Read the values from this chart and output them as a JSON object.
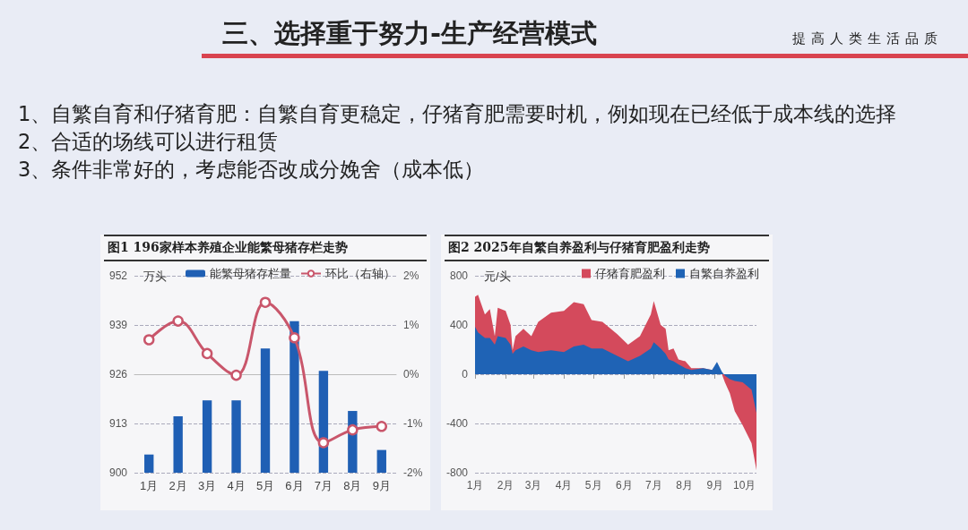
{
  "chart_data": [
    {
      "type": "other",
      "title": "三、选择重于努力-生产经营模式",
      "subtitle": "提高人类生活品质",
      "annotations": [
        "1、自繁自育和仔猪育肥：自繁自育更稳定，仔猪育肥需要时机，例如现在已经低于成本线的选择",
        "2、合适的场线可以进行租赁",
        "3、条件非常好的，考虑能否改成分娩舍（成本低）"
      ]
    },
    {
      "type": "bar",
      "title": "图1 196家样本养殖企业能繁母猪存栏走势",
      "ylabel": "万头",
      "categories": [
        "1月",
        "2月",
        "3月",
        "4月",
        "5月",
        "6月",
        "7月",
        "8月",
        "9月"
      ],
      "series": [
        {
          "name": "能繁母猪存栏量",
          "color": "#1f5fb4",
          "values": [
            904.8,
            914.9,
            919.1,
            919.1,
            932.8,
            940.0,
            926.9,
            916.3,
            906.0
          ]
        },
        {
          "name": "环比（右轴）",
          "type": "line",
          "axis": "y2",
          "color": "#c9566b",
          "values": [
            0.7,
            1.08,
            0.42,
            -0.02,
            1.46,
            0.74,
            -1.39,
            -1.13,
            -1.06
          ]
        }
      ],
      "ylim": [
        900,
        952
      ],
      "yticks": [
        900,
        913,
        926,
        939,
        952
      ],
      "y2lim": [
        -2,
        2
      ],
      "y2ticks": [
        {
          "value": -2,
          "label": "-2%"
        },
        {
          "value": -1,
          "label": "-1%"
        },
        {
          "value": 0,
          "label": "0%"
        },
        {
          "value": 1,
          "label": "1%"
        },
        {
          "value": 2,
          "label": "2%"
        }
      ],
      "grid": "y",
      "legend": "top",
      "marker": "circle"
    },
    {
      "type": "area",
      "title": "图2 2025年自繁自养盈利与仔猪育肥盈利走势",
      "ylabel": "元/头",
      "x": [
        "2025-01-01",
        "2025-01-04",
        "2025-01-11",
        "2025-01-16",
        "2025-01-21",
        "2025-01-24",
        "2025-02-01",
        "2025-02-06",
        "2025-02-08",
        "2025-02-11",
        "2025-02-19",
        "2025-02-27",
        "2025-03-06",
        "2025-03-19",
        "2025-04-01",
        "2025-04-11",
        "2025-04-21",
        "2025-04-29",
        "2025-05-10",
        "2025-05-25",
        "2025-06-05",
        "2025-06-17",
        "2025-06-28",
        "2025-07-01",
        "2025-07-08",
        "2025-07-13",
        "2025-07-16",
        "2025-07-21",
        "2025-07-26",
        "2025-08-02",
        "2025-08-08",
        "2025-08-20",
        "2025-08-29",
        "2025-09-03",
        "2025-09-08",
        "2025-09-11",
        "2025-09-16",
        "2025-09-21",
        "2025-09-29",
        "2025-10-08",
        "2025-10-13"
      ],
      "series": [
        {
          "name": "仔猪育肥盈利",
          "color": "#d44a5c",
          "values": [
            630,
            645,
            485,
            530,
            310,
            540,
            515,
            400,
            195,
            310,
            370,
            310,
            425,
            500,
            515,
            585,
            570,
            440,
            425,
            325,
            240,
            310,
            485,
            595,
            400,
            370,
            195,
            210,
            120,
            105,
            50,
            50,
            35,
            80,
            0,
            -65,
            -155,
            -300,
            -415,
            -560,
            -780
          ]
        },
        {
          "name": "自繁自养盈利",
          "color": "#1f63b5",
          "values": [
            385,
            340,
            295,
            295,
            240,
            310,
            295,
            240,
            165,
            195,
            225,
            195,
            180,
            195,
            180,
            225,
            240,
            210,
            210,
            150,
            105,
            150,
            210,
            260,
            210,
            165,
            120,
            105,
            80,
            50,
            35,
            50,
            35,
            100,
            20,
            -10,
            -40,
            -55,
            -65,
            -125,
            -315
          ]
        }
      ],
      "xlim": [
        "2025-01-01",
        "2025-10-13"
      ],
      "xticks": [
        {
          "value": "2025-01-01",
          "label": "1月"
        },
        {
          "value": "2025-02-01",
          "label": "2月"
        },
        {
          "value": "2025-03-01",
          "label": "3月"
        },
        {
          "value": "2025-04-01",
          "label": "4月"
        },
        {
          "value": "2025-05-01",
          "label": "5月"
        },
        {
          "value": "2025-06-01",
          "label": "6月"
        },
        {
          "value": "2025-07-01",
          "label": "7月"
        },
        {
          "value": "2025-08-01",
          "label": "8月"
        },
        {
          "value": "2025-09-01",
          "label": "9月"
        },
        {
          "value": "2025-10-01",
          "label": "10月"
        }
      ],
      "ylim": [
        -800,
        800
      ],
      "yticks": [
        -800,
        -400,
        0,
        400,
        800
      ],
      "grid": "y",
      "legend": "top right"
    }
  ]
}
